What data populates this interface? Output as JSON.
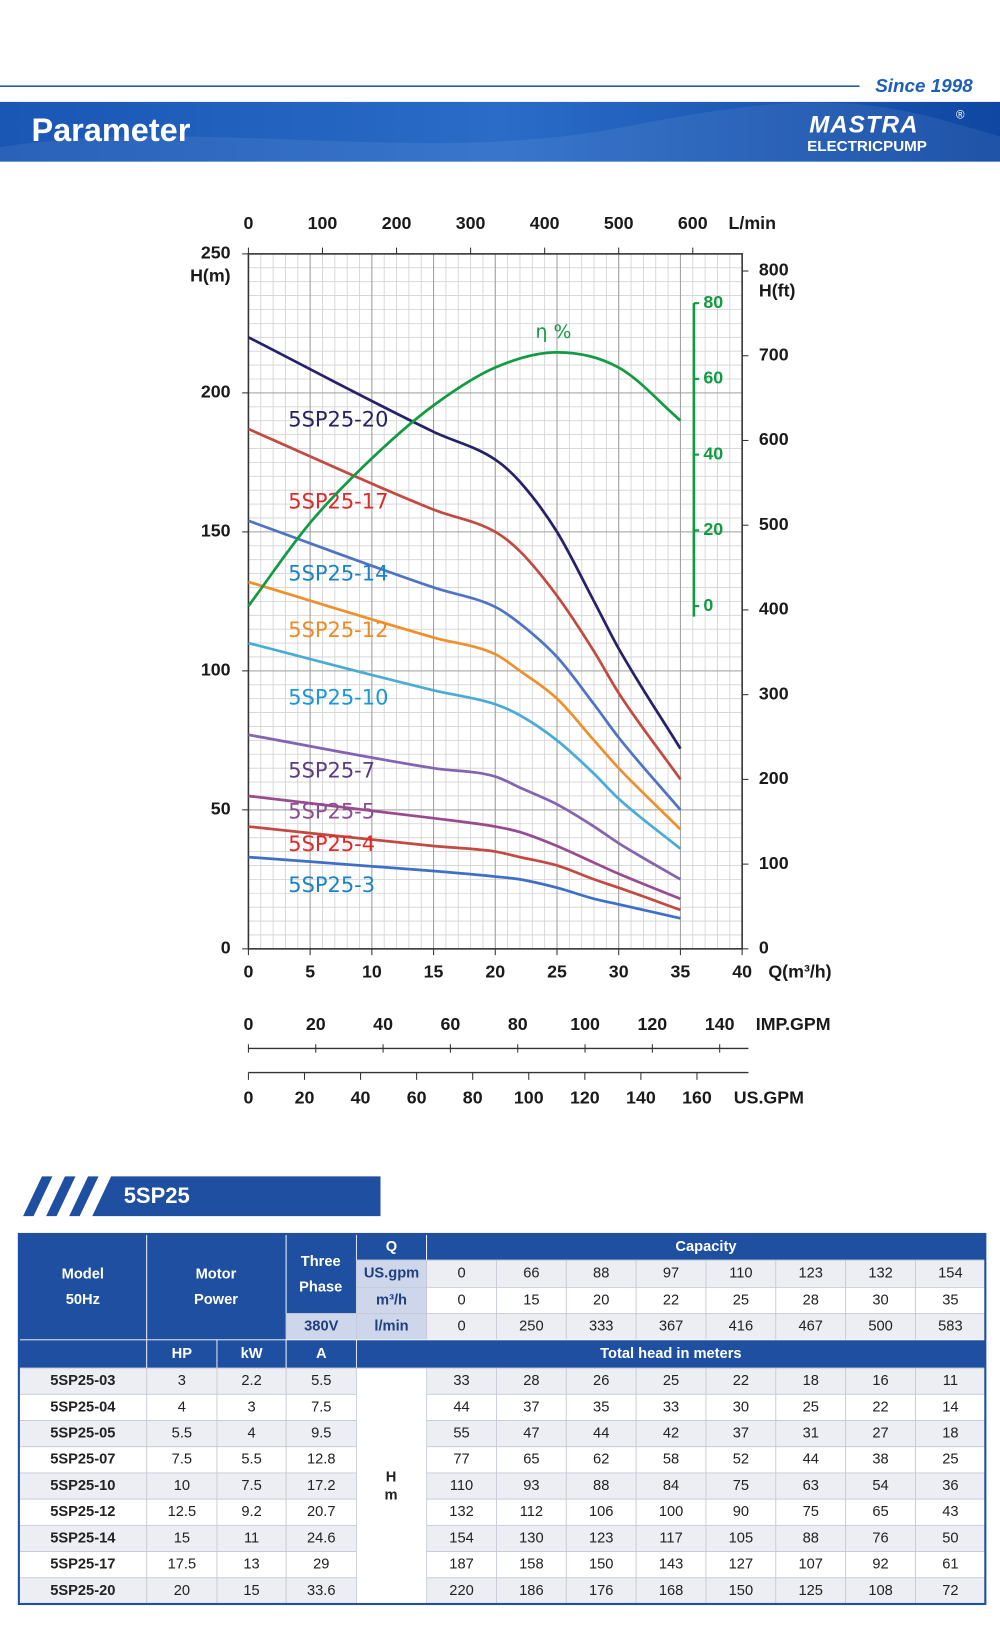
{
  "header": {
    "since": "Since 1998",
    "title": "Parameter",
    "logo": "MASTRA",
    "logo_mark": "®",
    "logo_sub": "ELECTRICPUMP"
  },
  "chart_data": {
    "type": "line",
    "x_label": "Q(m³/h)",
    "y_label": "H(m)",
    "xlim": [
      0,
      40
    ],
    "xticks": [
      0,
      5,
      10,
      15,
      20,
      25,
      30,
      35,
      40
    ],
    "ylim": [
      0,
      250
    ],
    "yticks": [
      0,
      50,
      100,
      150,
      200,
      250
    ],
    "grid": true,
    "x": [
      0,
      15,
      20,
      22,
      25,
      28,
      30,
      35
    ],
    "series": [
      {
        "name": "5SP25-20",
        "color": "#25226a",
        "label_color": "#262363",
        "values": [
          220,
          186,
          176,
          168,
          150,
          125,
          108,
          72
        ]
      },
      {
        "name": "5SP25-17",
        "color": "#c24a42",
        "label_color": "#e02a2a",
        "values": [
          187,
          158,
          150,
          143,
          127,
          107,
          92,
          61
        ]
      },
      {
        "name": "5SP25-14",
        "color": "#4f74c6",
        "label_color": "#1c82c8",
        "values": [
          154,
          130,
          123,
          117,
          105,
          88,
          76,
          50
        ]
      },
      {
        "name": "5SP25-12",
        "color": "#f0902a",
        "label_color": "#ef8a25",
        "values": [
          132,
          112,
          106,
          100,
          90,
          75,
          65,
          43
        ]
      },
      {
        "name": "5SP25-10",
        "color": "#49acd6",
        "label_color": "#1a98d8",
        "values": [
          110,
          93,
          88,
          84,
          75,
          63,
          54,
          36
        ]
      },
      {
        "name": "5SP25-7",
        "color": "#8464b0",
        "label_color": "#5c3d80",
        "values": [
          77,
          65,
          62,
          58,
          52,
          44,
          38,
          25
        ]
      },
      {
        "name": "5SP25-5",
        "color": "#9a4b8e",
        "label_color": "#8c4e92",
        "values": [
          55,
          47,
          44,
          42,
          37,
          31,
          27,
          18
        ]
      },
      {
        "name": "5SP25-4",
        "color": "#c24a42",
        "label_color": "#e02a2a",
        "values": [
          44,
          37,
          35,
          33,
          30,
          25,
          22,
          14
        ]
      },
      {
        "name": "5SP25-3",
        "color": "#3f6fc8",
        "label_color": "#1c82c8",
        "values": [
          33,
          28,
          26,
          25,
          22,
          18,
          16,
          11
        ]
      }
    ],
    "efficiency": {
      "name": "η %",
      "color": "#129b42",
      "x": [
        0,
        5,
        10,
        15,
        20,
        25,
        30,
        35
      ],
      "values": [
        0,
        22,
        39,
        53,
        63,
        67,
        63,
        49
      ],
      "ylim": [
        0,
        80
      ],
      "ticks": [
        0,
        20,
        40,
        60,
        80
      ]
    },
    "top_axis": {
      "label": "L/min",
      "lim": [
        0,
        666.67
      ],
      "ticks": [
        0,
        100,
        200,
        300,
        400,
        500,
        600
      ]
    },
    "right_axis": {
      "label": "H(ft)",
      "lim": [
        0,
        820.21
      ],
      "ticks": [
        0,
        100,
        200,
        300,
        400,
        500,
        600,
        700,
        800
      ]
    },
    "imp_axis": {
      "label": "IMP.GPM",
      "lim": [
        0,
        146.67
      ],
      "ticks": [
        0,
        20,
        40,
        60,
        80,
        100,
        120,
        140
      ]
    },
    "us_axis": {
      "label": "US.GPM",
      "lim": [
        0,
        176.11
      ],
      "ticks": [
        0,
        20,
        40,
        60,
        80,
        100,
        120,
        140,
        160
      ]
    }
  },
  "table": {
    "title": "5SP25",
    "head": {
      "model": "Model",
      "model_sub": "50Hz",
      "motor": "Motor",
      "motor_sub": "Power",
      "phase": "Three",
      "phase_sub": "Phase",
      "voltage": "380V",
      "q": "Q",
      "capacity": "Capacity",
      "hp": "HP",
      "kw": "kW",
      "amp": "A",
      "total_head": "Total head in meters",
      "head_unit": "H",
      "head_unit_sub": "m"
    },
    "flow": [
      {
        "unit": "US.gpm",
        "values": [
          0,
          66,
          88,
          97,
          110,
          123,
          132,
          154
        ]
      },
      {
        "unit": "m³/h",
        "values": [
          0,
          15,
          20,
          22,
          25,
          28,
          30,
          35
        ]
      },
      {
        "unit": "l/min",
        "values": [
          0,
          250,
          333,
          367,
          416,
          467,
          500,
          583
        ]
      }
    ],
    "rows": [
      [
        "5SP25-03",
        3,
        2.2,
        5.5,
        33,
        28,
        26,
        25,
        22,
        18,
        16,
        11
      ],
      [
        "5SP25-04",
        4,
        3,
        7.5,
        44,
        37,
        35,
        33,
        30,
        25,
        22,
        14
      ],
      [
        "5SP25-05",
        5.5,
        4,
        9.5,
        55,
        47,
        44,
        42,
        37,
        31,
        27,
        18
      ],
      [
        "5SP25-07",
        7.5,
        5.5,
        12.8,
        77,
        65,
        62,
        58,
        52,
        44,
        38,
        25
      ],
      [
        "5SP25-10",
        10,
        7.5,
        17.2,
        110,
        93,
        88,
        84,
        75,
        63,
        54,
        36
      ],
      [
        "5SP25-12",
        12.5,
        9.2,
        20.7,
        132,
        112,
        106,
        100,
        90,
        75,
        65,
        43
      ],
      [
        "5SP25-14",
        15,
        11,
        24.6,
        154,
        130,
        123,
        117,
        105,
        88,
        76,
        50
      ],
      [
        "5SP25-17",
        17.5,
        13,
        29,
        187,
        158,
        150,
        143,
        127,
        107,
        92,
        61
      ],
      [
        "5SP25-20",
        20,
        15,
        33.6,
        220,
        186,
        176,
        168,
        150,
        125,
        108,
        72
      ]
    ]
  }
}
